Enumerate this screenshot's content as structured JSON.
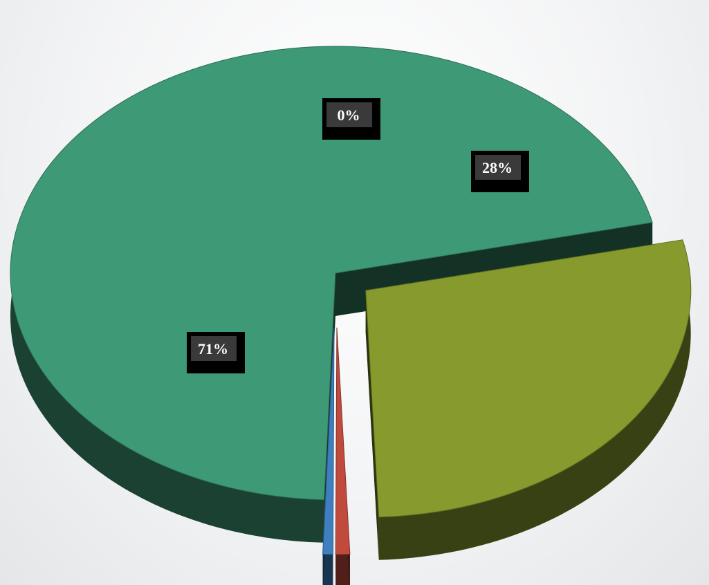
{
  "chart_data": {
    "type": "pie",
    "style": "3d-exploded",
    "title": "",
    "legend": "none",
    "slices": [
      {
        "value": 0.71,
        "label": "71%",
        "color": "#3e9a76"
      },
      {
        "value": 0.28,
        "label": "28%",
        "color": "#869a2e"
      },
      {
        "value": 0.007,
        "label": "0%",
        "color": "#c04a3c"
      },
      {
        "value": 0.005,
        "label": "",
        "color": "#3f7fc0"
      }
    ]
  }
}
